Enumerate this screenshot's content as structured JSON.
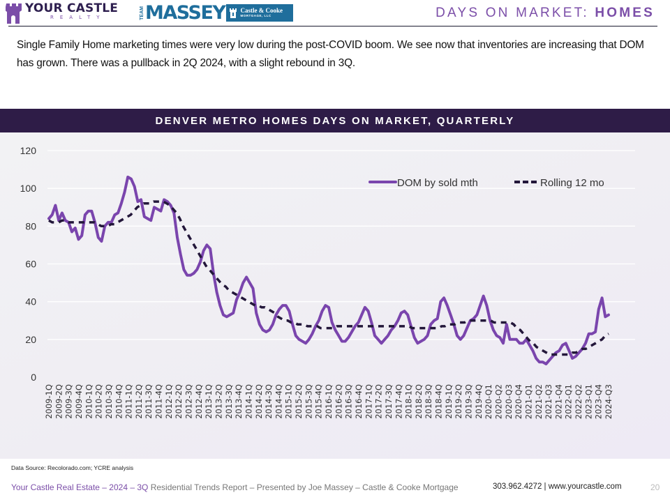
{
  "header": {
    "logo_primary": "YOUR CASTLE",
    "logo_secondary": "REALTY",
    "partner_team": "TEAM",
    "partner_name": "MASSEY",
    "partner_company": "Castle & Cooke",
    "partner_company_sub": "MORTGAGE, LLC",
    "title_prefix": "DAYS ON MARKET: ",
    "title_bold": "HOMES"
  },
  "intro_text": "Single Family Home marketing times were very low during the post-COVID boom. We see now that inventories are increasing that DOM has grown. There was a pullback in 2Q 2024, with a slight rebound in 3Q.",
  "colors": {
    "brand_purple": "#7b4ea8",
    "series_purple": "#7a45ad",
    "dark_navy": "#2e1c47",
    "rolling_line": "#23173a",
    "massey_blue": "#1f6e9c"
  },
  "chart_data": {
    "type": "line",
    "title": "DENVER METRO HOMES DAYS ON MARKET, QUARTERLY",
    "xlabel": "",
    "ylabel": "",
    "ylim": [
      0,
      120
    ],
    "yticks": [
      0,
      20,
      40,
      60,
      80,
      100,
      120
    ],
    "grid": true,
    "legend_position": "top-right",
    "categories": [
      "2009-1Q",
      "2009-2Q",
      "2009-3Q",
      "2009-4Q",
      "2010-1Q",
      "2010-2Q",
      "2010-3Q",
      "2010-4Q",
      "2011-1Q",
      "2011-2Q",
      "2011-3Q",
      "2011-4Q",
      "2012-1Q",
      "2012-2Q",
      "2012-3Q",
      "2012-4Q",
      "2013-1Q",
      "2013-2Q",
      "2013-3Q",
      "2013-4Q",
      "2014-1Q",
      "2014-2Q",
      "2014-3Q",
      "2014-4Q",
      "2015-1Q",
      "2015-2Q",
      "2015-3Q",
      "2015-4Q",
      "2016-1Q",
      "2016-2Q",
      "2016-3Q",
      "2016-4Q",
      "2017-1Q",
      "2017-2Q",
      "2017-3Q",
      "2017-4Q",
      "2018-1Q",
      "2018-2Q",
      "2018-3Q",
      "2018-4Q",
      "2019-1Q",
      "2019-2Q",
      "2019-3Q",
      "2019-4Q",
      "2020-Q1",
      "2020-Q2",
      "2020-Q3",
      "2020-Q4",
      "2021-Q1",
      "2021-Q2",
      "2021-Q3",
      "2021-Q4",
      "2022-Q1",
      "2022-Q2",
      "2023-Q1",
      "2023-Q4",
      "2024-Q3"
    ],
    "series": [
      {
        "name": "DOM by sold mth",
        "style": "solid",
        "values": [
          84,
          86,
          91,
          83,
          87,
          83,
          82,
          77,
          79,
          73,
          75,
          86,
          88,
          88,
          82,
          74,
          72,
          80,
          82,
          82,
          86,
          87,
          92,
          98,
          106,
          105,
          101,
          93,
          94,
          85,
          84,
          83,
          90,
          89,
          88,
          94,
          93,
          91,
          87,
          74,
          65,
          57,
          54,
          54,
          55,
          57,
          61,
          67,
          70,
          68,
          55,
          45,
          38,
          33,
          32,
          33,
          34,
          41,
          45,
          50,
          53,
          50,
          47,
          34,
          28,
          25,
          24,
          25,
          28,
          33,
          36,
          38,
          38,
          35,
          28,
          22,
          20,
          19,
          18,
          20,
          23,
          27,
          30,
          35,
          38,
          37,
          29,
          25,
          22,
          19,
          19,
          21,
          24,
          27,
          29,
          33,
          37,
          35,
          29,
          22,
          20,
          18,
          20,
          22,
          25,
          27,
          30,
          34,
          35,
          33,
          27,
          21,
          18,
          19,
          20,
          22,
          28,
          30,
          31,
          40,
          42,
          38,
          33,
          28,
          22,
          20,
          22,
          26,
          30,
          31,
          33,
          38,
          43,
          38,
          30,
          25,
          22,
          21,
          18,
          28,
          20,
          20,
          20,
          18,
          18,
          20,
          17,
          14,
          10,
          8,
          8,
          7,
          9,
          11,
          13,
          14,
          17,
          18,
          14,
          10,
          11,
          13,
          15,
          18,
          23,
          23,
          24,
          36,
          42,
          32,
          33
        ]
      },
      {
        "name": "Rolling 12 mo",
        "style": "dashed",
        "values": [
          83,
          82,
          82,
          82,
          83,
          83,
          82,
          82,
          82,
          82,
          82,
          82,
          82,
          82,
          82,
          81,
          80,
          80,
          80,
          81,
          81,
          82,
          83,
          84,
          85,
          86,
          88,
          90,
          91,
          92,
          92,
          92,
          93,
          93,
          93,
          93,
          92,
          91,
          89,
          87,
          84,
          80,
          77,
          74,
          71,
          68,
          65,
          62,
          59,
          57,
          55,
          53,
          51,
          49,
          48,
          46,
          45,
          44,
          43,
          42,
          41,
          40,
          39,
          38,
          38,
          37,
          37,
          36,
          35,
          34,
          32,
          31,
          30,
          30,
          29,
          29,
          28,
          28,
          28,
          27,
          27,
          27,
          27,
          26,
          26,
          26,
          26,
          26,
          27,
          27,
          27,
          27,
          27,
          27,
          27,
          27,
          27,
          27,
          27,
          27,
          27,
          27,
          27,
          27,
          27,
          27,
          27,
          27,
          27,
          27,
          27,
          26,
          26,
          26,
          26,
          26,
          26,
          26,
          26,
          26,
          27,
          27,
          28,
          28,
          28,
          29,
          29,
          29,
          30,
          30,
          30,
          30,
          30,
          30,
          30,
          30,
          29,
          29,
          29,
          29,
          29,
          29,
          28,
          26,
          25,
          23,
          21,
          19,
          18,
          16,
          15,
          14,
          13,
          12,
          12,
          12,
          12,
          12,
          12,
          12,
          13,
          13,
          14,
          15,
          15,
          16,
          17,
          18,
          19,
          20,
          22,
          23
        ]
      }
    ]
  },
  "source_note": "Data Source: Recolorado.com; YCRE analysis",
  "footer": {
    "brand_part": "Your Castle Real Estate – 2024 – 3Q ",
    "report_part": "Residential Trends Report – Presented by Joe Massey – Castle & Cooke Mortgage",
    "contact": "303.962.4272 | www.yourcastle.com",
    "page_number": "20"
  }
}
